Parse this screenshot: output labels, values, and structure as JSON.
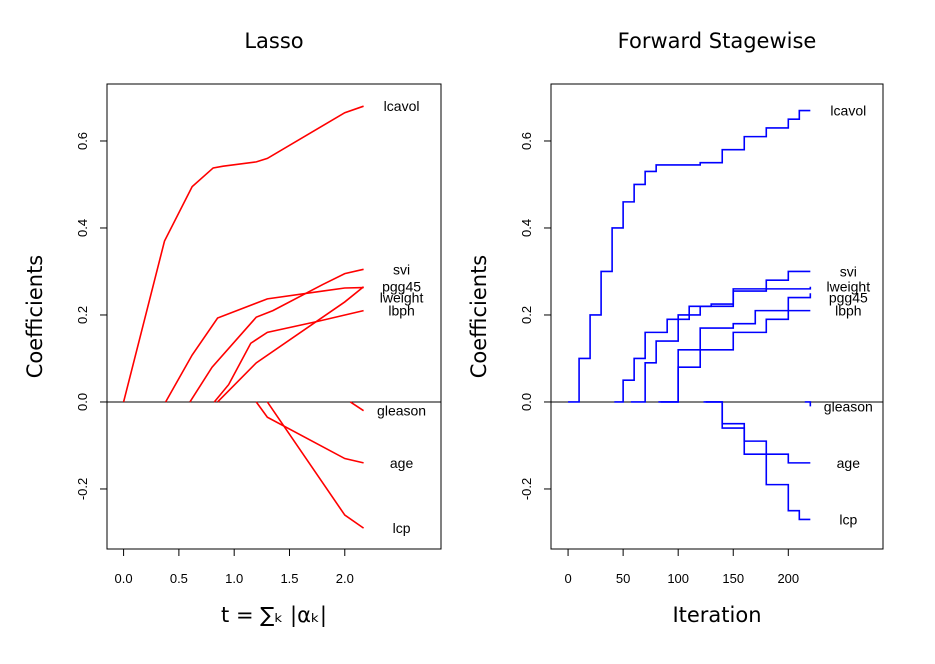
{
  "chart_data": [
    {
      "type": "line",
      "title": "Lasso",
      "xlabel": "t = ∑ₖ |αₖ|",
      "ylabel": "Coefficients",
      "color": "#ff0000",
      "steps": false,
      "zero_line": true,
      "xlim": [
        -0.15,
        2.87
      ],
      "ylim": [
        -0.338,
        0.731
      ],
      "xticks": [
        {
          "value": 0,
          "label": "0.0"
        },
        0.5,
        {
          "value": 1,
          "label": "1.0"
        },
        1.5,
        {
          "value": 2,
          "label": "2.0"
        }
      ],
      "yticks": [
        -0.2,
        {
          "value": 0,
          "label": "0.0"
        },
        0.2,
        0.4,
        0.6
      ],
      "series": [
        {
          "name": "lcavol",
          "x": [
            0,
            0.37,
            0.62,
            0.81,
            0.9,
            1.2,
            1.3,
            2.0,
            2.17
          ],
          "values": [
            0,
            0.37,
            0.495,
            0.538,
            0.542,
            0.552,
            0.56,
            0.665,
            0.68
          ]
        },
        {
          "name": "svi",
          "x": [
            0.6,
            0.8,
            1.2,
            1.35,
            1.8,
            2.0,
            2.17
          ],
          "values": [
            0,
            0.08,
            0.195,
            0.21,
            0.27,
            0.295,
            0.305
          ]
        },
        {
          "name": "lweight",
          "x": [
            0.38,
            0.62,
            0.85,
            1.3,
            1.8,
            2.0,
            2.17
          ],
          "values": [
            0,
            0.108,
            0.193,
            0.237,
            0.255,
            0.262,
            0.263
          ]
        },
        {
          "name": "pgg45",
          "x": [
            0.85,
            1.2,
            2.0,
            2.17
          ],
          "values": [
            0,
            0.09,
            0.23,
            0.265
          ]
        },
        {
          "name": "lbph",
          "x": [
            0.82,
            0.95,
            1.15,
            1.3,
            1.75,
            2.17
          ],
          "values": [
            0,
            0.04,
            0.135,
            0.16,
            0.185,
            0.21
          ]
        },
        {
          "name": "gleason",
          "x": [
            2.05,
            2.17
          ],
          "values": [
            0,
            -0.02
          ]
        },
        {
          "name": "age",
          "x": [
            1.2,
            1.3,
            2.0,
            2.17
          ],
          "values": [
            0,
            -0.035,
            -0.13,
            -0.14
          ]
        },
        {
          "name": "lcp",
          "x": [
            1.3,
            2.0,
            2.17
          ],
          "values": [
            0,
            -0.26,
            -0.29
          ]
        }
      ]
    },
    {
      "type": "line",
      "title": "Forward Stagewise",
      "xlabel": "Iteration",
      "ylabel": "Coefficients",
      "color": "#0000ff",
      "steps": true,
      "zero_line": true,
      "xlim": [
        -15.5,
        286
      ],
      "ylim": [
        -0.338,
        0.731
      ],
      "xticks": [
        0,
        50,
        100,
        150,
        200
      ],
      "yticks": [
        -0.2,
        {
          "value": 0,
          "label": "0.0"
        },
        0.2,
        0.4,
        0.6
      ],
      "series": [
        {
          "name": "lcavol",
          "x": [
            0,
            10,
            20,
            30,
            40,
            50,
            60,
            70,
            80,
            100,
            120,
            140,
            160,
            180,
            200,
            210,
            220
          ],
          "values": [
            0,
            0.1,
            0.2,
            0.3,
            0.4,
            0.46,
            0.5,
            0.53,
            0.545,
            0.545,
            0.55,
            0.58,
            0.61,
            0.63,
            0.65,
            0.67,
            0.67
          ]
        },
        {
          "name": "svi",
          "x": [
            42,
            50,
            60,
            70,
            90,
            110,
            130,
            150,
            180,
            200,
            220
          ],
          "values": [
            0,
            0.05,
            0.1,
            0.16,
            0.19,
            0.22,
            0.225,
            0.255,
            0.28,
            0.3,
            0.3
          ]
        },
        {
          "name": "lweight",
          "x": [
            57,
            70,
            80,
            100,
            120,
            150,
            180,
            220
          ],
          "values": [
            0,
            0.09,
            0.14,
            0.2,
            0.22,
            0.26,
            0.26,
            0.265
          ]
        },
        {
          "name": "pgg45",
          "x": [
            82,
            100,
            120,
            150,
            170,
            200,
            220
          ],
          "values": [
            0,
            0.12,
            0.17,
            0.18,
            0.21,
            0.24,
            0.25
          ]
        },
        {
          "name": "lbph",
          "x": [
            84,
            100,
            120,
            150,
            180,
            200,
            220
          ],
          "values": [
            0,
            0.08,
            0.12,
            0.16,
            0.19,
            0.21,
            0.21
          ]
        },
        {
          "name": "gleason",
          "x": [
            215,
            220
          ],
          "values": [
            0,
            -0.01
          ]
        },
        {
          "name": "age",
          "x": [
            123,
            140,
            160,
            180,
            200,
            220
          ],
          "values": [
            0,
            -0.06,
            -0.09,
            -0.12,
            -0.14,
            -0.14
          ]
        },
        {
          "name": "lcp",
          "x": [
            125,
            140,
            160,
            180,
            200,
            210,
            220
          ],
          "values": [
            0,
            -0.05,
            -0.12,
            -0.19,
            -0.25,
            -0.27,
            -0.27
          ]
        }
      ]
    }
  ]
}
